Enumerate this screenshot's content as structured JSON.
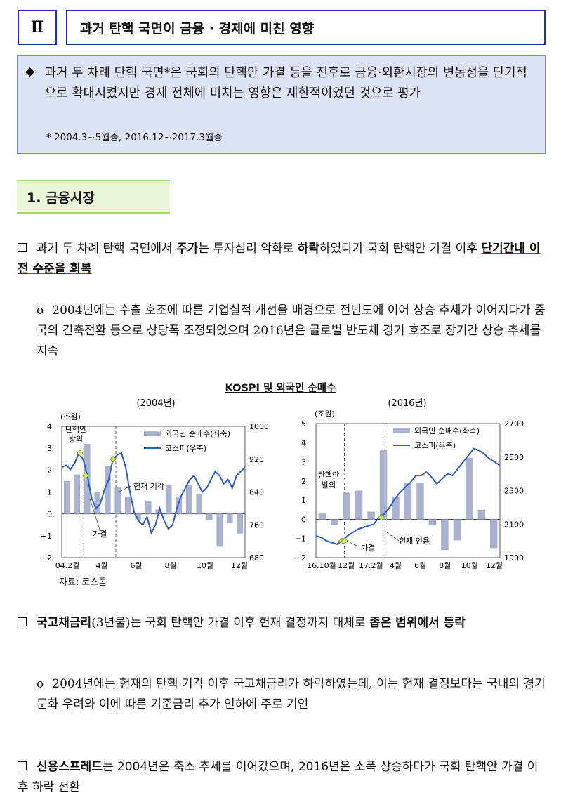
{
  "header": {
    "roman": "Ⅱ",
    "title": "과거 탄핵 국면이 금융 · 경제에 미친 영향"
  },
  "summary": {
    "bullet": "◆",
    "text": "과거 두 차례 탄핵 국면*은 국회의 탄핵안 가결 등을 전후로 금융·외환시장의 변동성을 단기적으로 확대시켰지만 경제 전체에 미치는 영향은 제한적이었던 것으로 평가",
    "footnote": "* 2004.3~5월중, 2016.12~2017.3월중"
  },
  "section": {
    "title": "1. 금융시장"
  },
  "paragraphs": [
    {
      "lead": "과거 두 차례 탄핵 국면에서",
      "bold1": "주가",
      "mid": "는 투자심리 악화로",
      "bold2": "하락",
      "rest": "하였다가 국회 탄핵안 가결 이후",
      "bold3": "단기간내 이전 수준을 회복"
    },
    {
      "text": "2004년에는 수출 호조에 따른 기업실적 개선을 배경으로 전년도에 이어 상승 추세가 이어지다가 중국의 긴축전환 등으로 상당폭 조정되었으며 2016년은 글로벌 반도체 경기 호조로 장기간 상승 추세를 지속"
    },
    {
      "bold": "국고채금리",
      "paren": "(3년물)",
      "mid": "는 국회 탄핵안 가결 이후 헌재 결정까지 대체로",
      "bold2": "좁은 범위에서 등락"
    },
    {
      "text": "2004년에는 헌재의 탄핵 기각 이후 국고채금리가 하락하였는데, 이는 헌재 결정보다는 국내외 경기둔화 우려와 이에 따른 기준금리 추가 인하에 주로 기인"
    },
    {
      "bold": "신용스프레드",
      "rest": "는 2004년은 축소 추세를 이어갔으며, 2016년은 소폭 상승하다가 국회 탄핵안 가결 이후 하락 전환"
    }
  ],
  "figure": {
    "title": "KOSPI 및 외국인 순매수",
    "source": "자료: 코스콤",
    "legend_bar": "외국인 순매수(좌축)",
    "legend_line": "코스피(우축)",
    "colors": {
      "bar": "#a9b3cf",
      "line": "#2f5cc4",
      "marker": "#c8ea6a"
    }
  },
  "chart_data": [
    {
      "type": "bar+line",
      "subtitle": "(2004년)",
      "unit_left": "(조원)",
      "y_left": {
        "min": -2,
        "max": 4,
        "ticks": [
          "4",
          "3",
          "2",
          "1",
          "0",
          "−1",
          "−2"
        ]
      },
      "y_right": {
        "min": 680,
        "max": 1000,
        "ticks": [
          "1000",
          "920",
          "840",
          "760",
          "680"
        ]
      },
      "x_ticks": [
        "04.2월",
        "4월",
        "6월",
        "8월",
        "10월",
        "12월"
      ],
      "annotations": [
        "탄핵안\n발의",
        "가결",
        "헌재 기각"
      ],
      "bars": [
        1.5,
        1.8,
        3.2,
        1.0,
        2.2,
        1.2,
        0.8,
        -0.3,
        0.6,
        0.2,
        1.3,
        0.8,
        1.3,
        0.9,
        -0.3,
        -1.5,
        -0.4,
        -0.9
      ],
      "kospi": [
        900,
        905,
        895,
        910,
        935,
        920,
        880,
        825,
        800,
        810,
        845,
        870,
        920,
        930,
        935,
        900,
        840,
        790,
        770,
        760,
        780,
        740,
        760,
        800,
        770,
        750,
        760,
        800,
        830,
        850,
        870,
        880,
        860,
        840,
        850,
        870,
        890,
        880,
        860,
        870,
        850,
        880,
        890,
        900
      ]
    },
    {
      "type": "bar+line",
      "subtitle": "(2016년)",
      "unit_left": "(조원)",
      "y_left": {
        "min": -2,
        "max": 5,
        "ticks": [
          "5",
          "4",
          "3",
          "2",
          "1",
          "0",
          "−1",
          "−2"
        ]
      },
      "y_right": {
        "min": 1900,
        "max": 2700,
        "ticks": [
          "2700",
          "2500",
          "2300",
          "2100",
          "1900"
        ]
      },
      "x_ticks": [
        "16.10월",
        "12월",
        "17.2월",
        "4월",
        "6월",
        "8월",
        "10월",
        "12월"
      ],
      "annotations": [
        "탄핵안\n발의",
        "가결",
        "헌재 인용"
      ],
      "bars": [
        0.3,
        -0.3,
        1.4,
        1.5,
        0.4,
        3.6,
        1.2,
        1.9,
        1.9,
        -0.3,
        -1.6,
        -1.1,
        3.2,
        0.5,
        -1.5
      ],
      "kospi": [
        2030,
        2020,
        2000,
        1990,
        1980,
        2000,
        2030,
        2050,
        2070,
        2080,
        2090,
        2100,
        2140,
        2160,
        2200,
        2250,
        2290,
        2320,
        2350,
        2390,
        2390,
        2410,
        2380,
        2340,
        2370,
        2400,
        2390,
        2430,
        2470,
        2510,
        2550,
        2540,
        2520,
        2490,
        2470,
        2450
      ]
    }
  ]
}
